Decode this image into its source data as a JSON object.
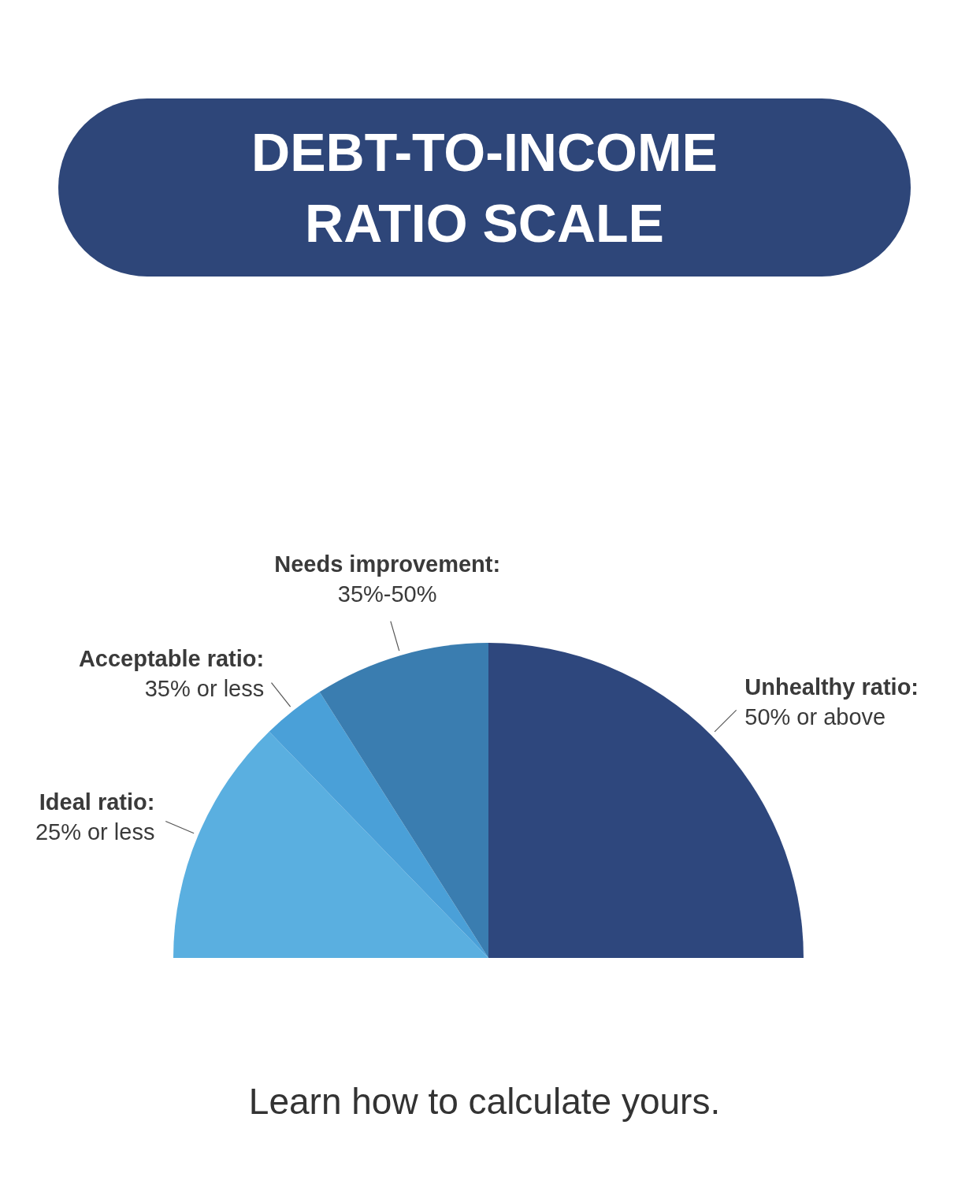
{
  "chart_data": {
    "type": "pie",
    "title": "DEBT-TO-INCOME\nRATIO SCALE",
    "categories": [
      "Ideal ratio:\n25% or less",
      "Acceptable ratio:\n35% or less",
      "Needs improvement:\n35%-50%",
      "Unhealthy ratio:\n50% or above"
    ],
    "values": [
      25.5,
      6.5,
      18,
      50
    ],
    "colors": [
      "#5aafe0",
      "#4aa0d8",
      "#3a7db0",
      "#2e477d"
    ],
    "annotations": [
      "Learn how to calculate yours."
    ]
  }
}
